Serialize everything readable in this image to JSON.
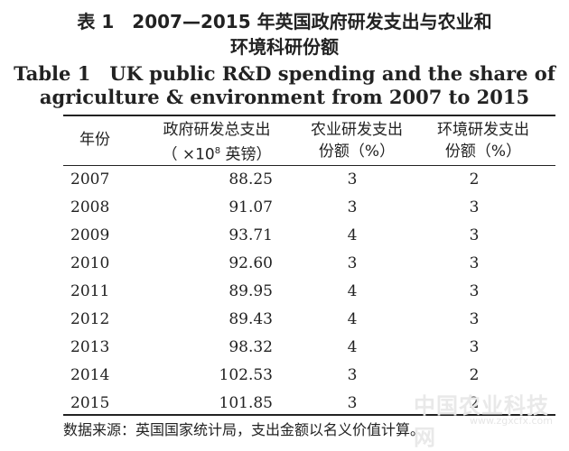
{
  "title_cn": {
    "line1": "表 1　2007—2015 年英国政府研发支出与农业和",
    "line2": "环境科研份额"
  },
  "title_en": {
    "line1": "Table 1　UK public R&D spending and the share of",
    "line2": "agriculture & environment from 2007 to 2015"
  },
  "headers": {
    "year": "年份",
    "gov_line1": "政府研发总支出",
    "gov_line2_pre": "（ ×10",
    "gov_line2_sup": "8",
    "gov_line2_post": " 英镑）",
    "agr_line1": "农业研发支出",
    "agr_line2": "份额（%）",
    "env_line1": "环境研发支出",
    "env_line2": "份额（%）"
  },
  "rows": [
    {
      "year": "2007",
      "gov": "88.25",
      "agr": "3",
      "env": "2"
    },
    {
      "year": "2008",
      "gov": "91.07",
      "agr": "3",
      "env": "3"
    },
    {
      "year": "2009",
      "gov": "93.71",
      "agr": "4",
      "env": "3"
    },
    {
      "year": "2010",
      "gov": "92.60",
      "agr": "3",
      "env": "3"
    },
    {
      "year": "2011",
      "gov": "89.95",
      "agr": "4",
      "env": "3"
    },
    {
      "year": "2012",
      "gov": "89.43",
      "agr": "4",
      "env": "3"
    },
    {
      "year": "2013",
      "gov": "98.32",
      "agr": "4",
      "env": "3"
    },
    {
      "year": "2014",
      "gov": "102.53",
      "agr": "3",
      "env": "2"
    },
    {
      "year": "2015",
      "gov": "101.85",
      "agr": "3",
      "env": "2"
    }
  ],
  "source": "数据来源：英国国家统计局，支出金额以名义价值计算。",
  "watermark": {
    "text": "中国农业科技网",
    "url": "www.zgxcfx.com"
  }
}
